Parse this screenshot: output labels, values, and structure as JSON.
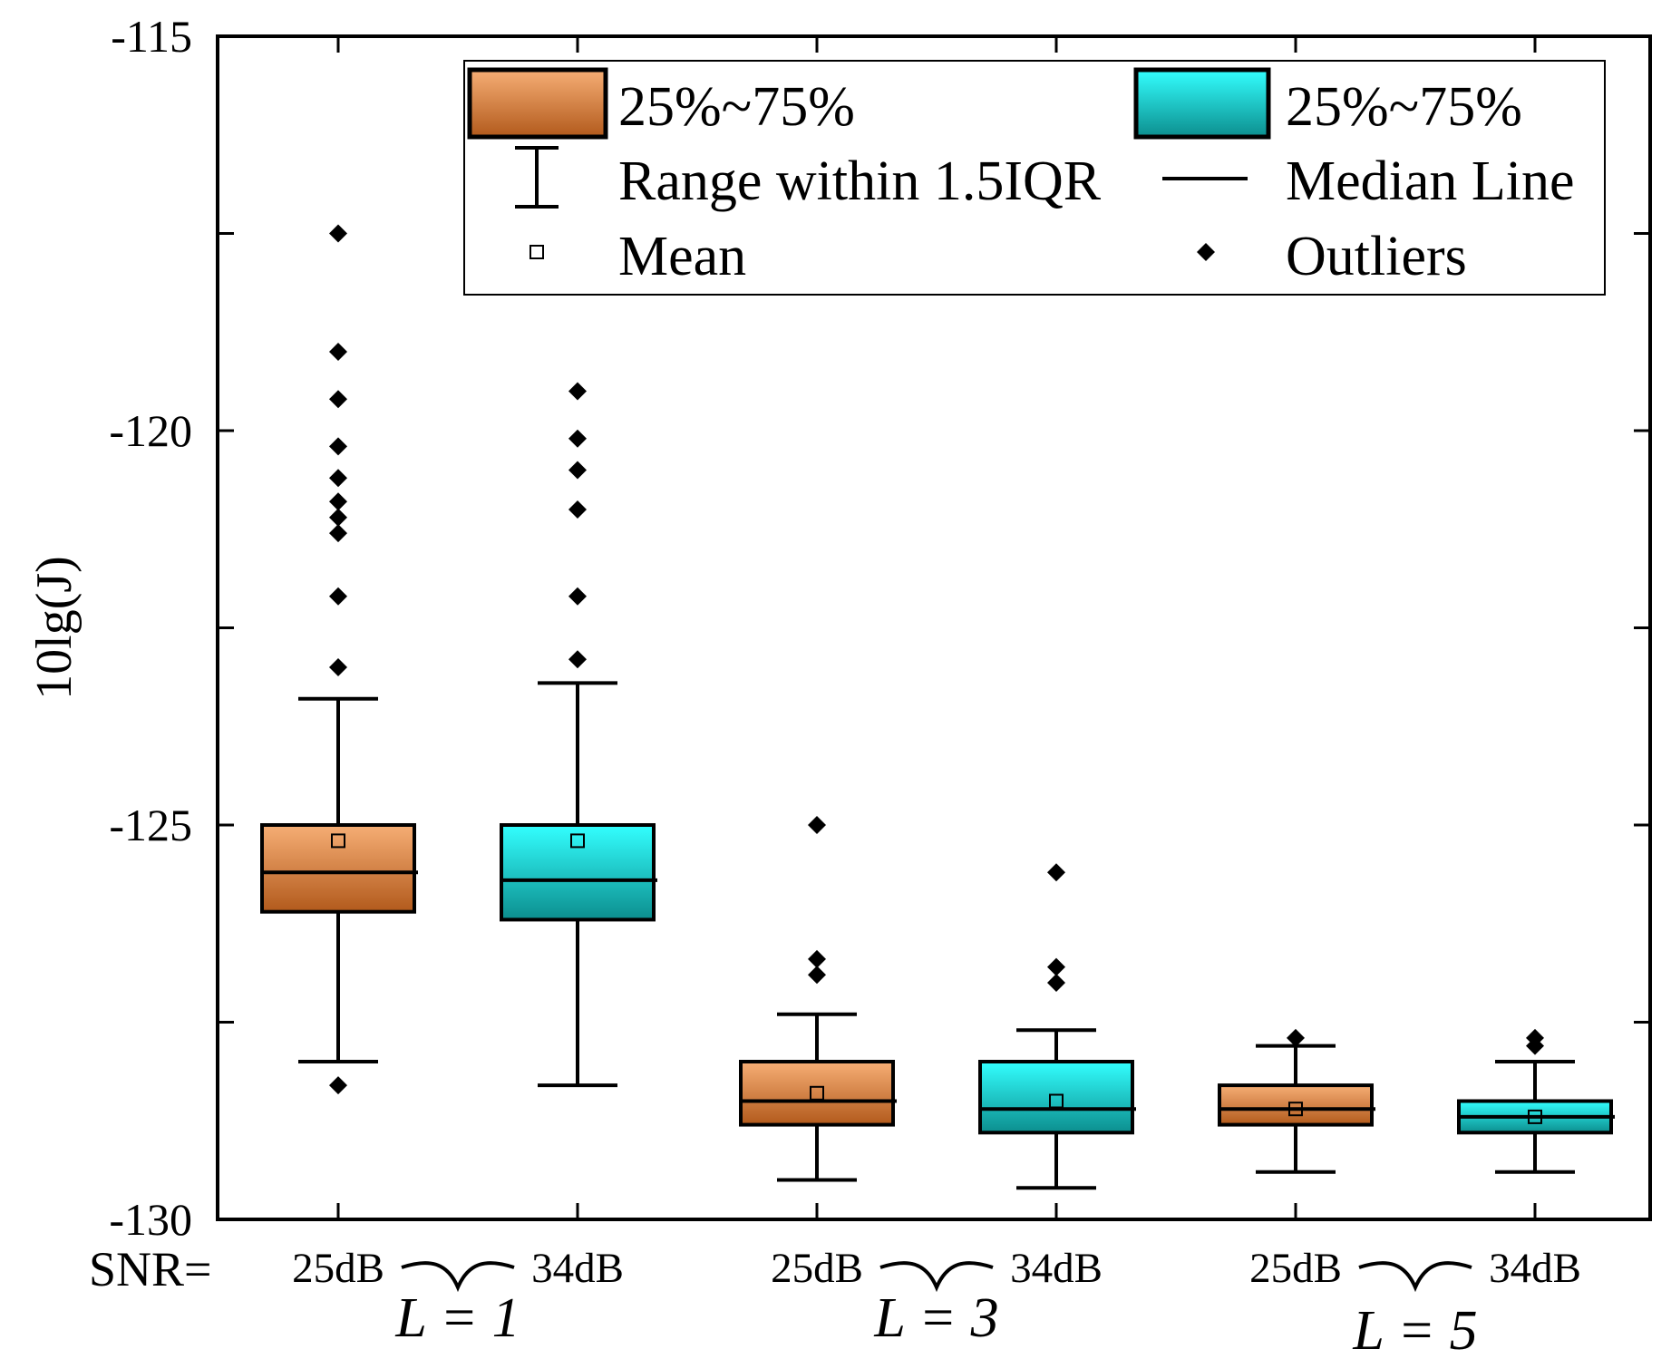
{
  "chart_data": {
    "type": "box",
    "ylabel": "10lg(J)",
    "ylim": [
      -130,
      -115
    ],
    "yticks": [
      -115,
      -120,
      -125,
      -130
    ],
    "x_prefix": "SNR=",
    "groups": [
      {
        "label": "L = 1",
        "snr_left": "25dB",
        "snr_right": "34dB"
      },
      {
        "label": "L = 3",
        "snr_left": "25dB",
        "snr_right": "34dB"
      },
      {
        "label": "L = 5",
        "snr_left": "25dB",
        "snr_right": "34dB"
      }
    ],
    "series": [
      {
        "name": "25dB",
        "color": "#e98a4d",
        "color_light": "#f6ae75",
        "color_dark": "#b25a1c"
      },
      {
        "name": "34dB",
        "color": "#1fd5d5",
        "color_light": "#33ffff",
        "color_dark": "#0c8e8e"
      }
    ],
    "boxes": [
      {
        "group": 0,
        "series": 0,
        "whisker_low": -128.0,
        "q1": -126.1,
        "median": -125.6,
        "q3": -125.0,
        "whisker_high": -123.4,
        "mean": -125.2,
        "outliers": [
          -117.5,
          -119.0,
          -119.6,
          -120.2,
          -120.6,
          -120.9,
          -121.1,
          -121.3,
          -122.1,
          -123.0,
          -128.3
        ]
      },
      {
        "group": 0,
        "series": 1,
        "whisker_low": -128.3,
        "q1": -126.2,
        "median": -125.7,
        "q3": -125.0,
        "whisker_high": -123.2,
        "mean": -125.2,
        "outliers": [
          -119.5,
          -120.1,
          -120.5,
          -121.0,
          -122.1,
          -122.9
        ]
      },
      {
        "group": 1,
        "series": 0,
        "whisker_low": -129.5,
        "q1": -128.8,
        "median": -128.5,
        "q3": -128.0,
        "whisker_high": -127.4,
        "mean": -128.4,
        "outliers": [
          -125.0,
          -126.7,
          -126.9
        ]
      },
      {
        "group": 1,
        "series": 1,
        "whisker_low": -129.6,
        "q1": -128.9,
        "median": -128.6,
        "q3": -128.0,
        "whisker_high": -127.6,
        "mean": -128.5,
        "outliers": [
          -125.6,
          -126.8,
          -127.0
        ]
      },
      {
        "group": 2,
        "series": 0,
        "whisker_low": -129.4,
        "q1": -128.8,
        "median": -128.6,
        "q3": -128.3,
        "whisker_high": -127.8,
        "mean": -128.6,
        "outliers": [
          -127.7
        ]
      },
      {
        "group": 2,
        "series": 1,
        "whisker_low": -129.4,
        "q1": -128.9,
        "median": -128.7,
        "q3": -128.5,
        "whisker_high": -128.0,
        "mean": -128.7,
        "outliers": [
          -127.7,
          -127.8
        ]
      }
    ],
    "legend": {
      "position": "top-right",
      "items": [
        {
          "kind": "box",
          "series": 0,
          "label": "25%~75%"
        },
        {
          "kind": "box",
          "series": 1,
          "label": "25%~75%"
        },
        {
          "kind": "range",
          "label": "Range within 1.5IQR"
        },
        {
          "kind": "median",
          "label": "Median Line"
        },
        {
          "kind": "mean",
          "label": "Mean"
        },
        {
          "kind": "outlier",
          "label": "Outliers"
        }
      ]
    }
  }
}
